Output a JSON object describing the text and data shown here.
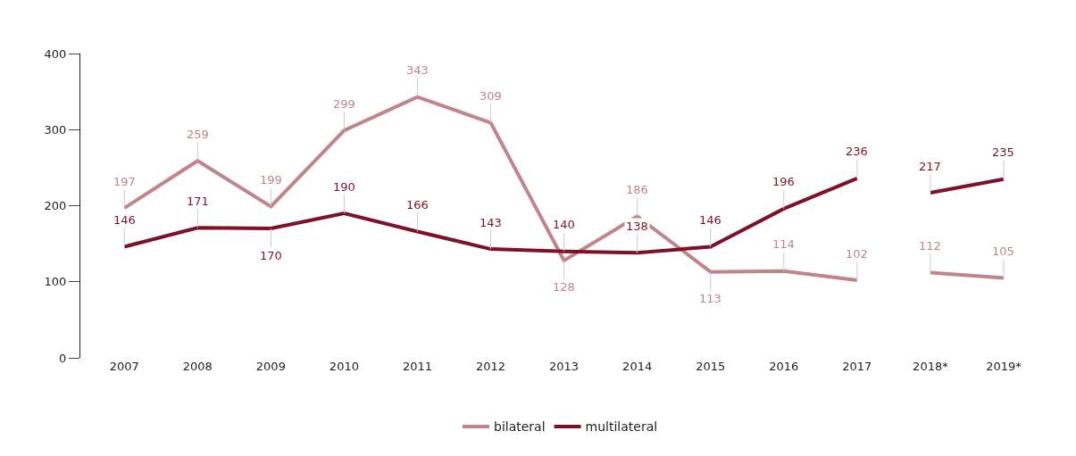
{
  "chart_data": {
    "type": "line",
    "categories": [
      "2007",
      "2008",
      "2009",
      "2010",
      "2011",
      "2012",
      "2013",
      "2014",
      "2015",
      "2016",
      "2017",
      "2018*",
      "2019*"
    ],
    "series": [
      {
        "name": "bilateral",
        "color": "#c0848b",
        "values": [
          197,
          259,
          199,
          299,
          343,
          309,
          128,
          186,
          113,
          114,
          102,
          null,
          null
        ]
      },
      {
        "name": "multilateral",
        "color": "#7c1127",
        "values": [
          146,
          171,
          170,
          190,
          166,
          143,
          140,
          138,
          146,
          196,
          236,
          null,
          null
        ]
      },
      {
        "color": "#c0848b",
        "values": [
          null,
          null,
          null,
          null,
          null,
          null,
          null,
          null,
          null,
          null,
          null,
          112,
          105
        ]
      },
      {
        "color": "#7c1127",
        "values": [
          null,
          null,
          null,
          null,
          null,
          null,
          null,
          null,
          null,
          null,
          null,
          217,
          235
        ]
      }
    ],
    "ylim": [
      0,
      400
    ],
    "yticks": [
      0,
      100,
      200,
      300,
      400
    ],
    "data_labels": true,
    "legend": "bottom",
    "marker": "none",
    "line_style": "solid"
  }
}
